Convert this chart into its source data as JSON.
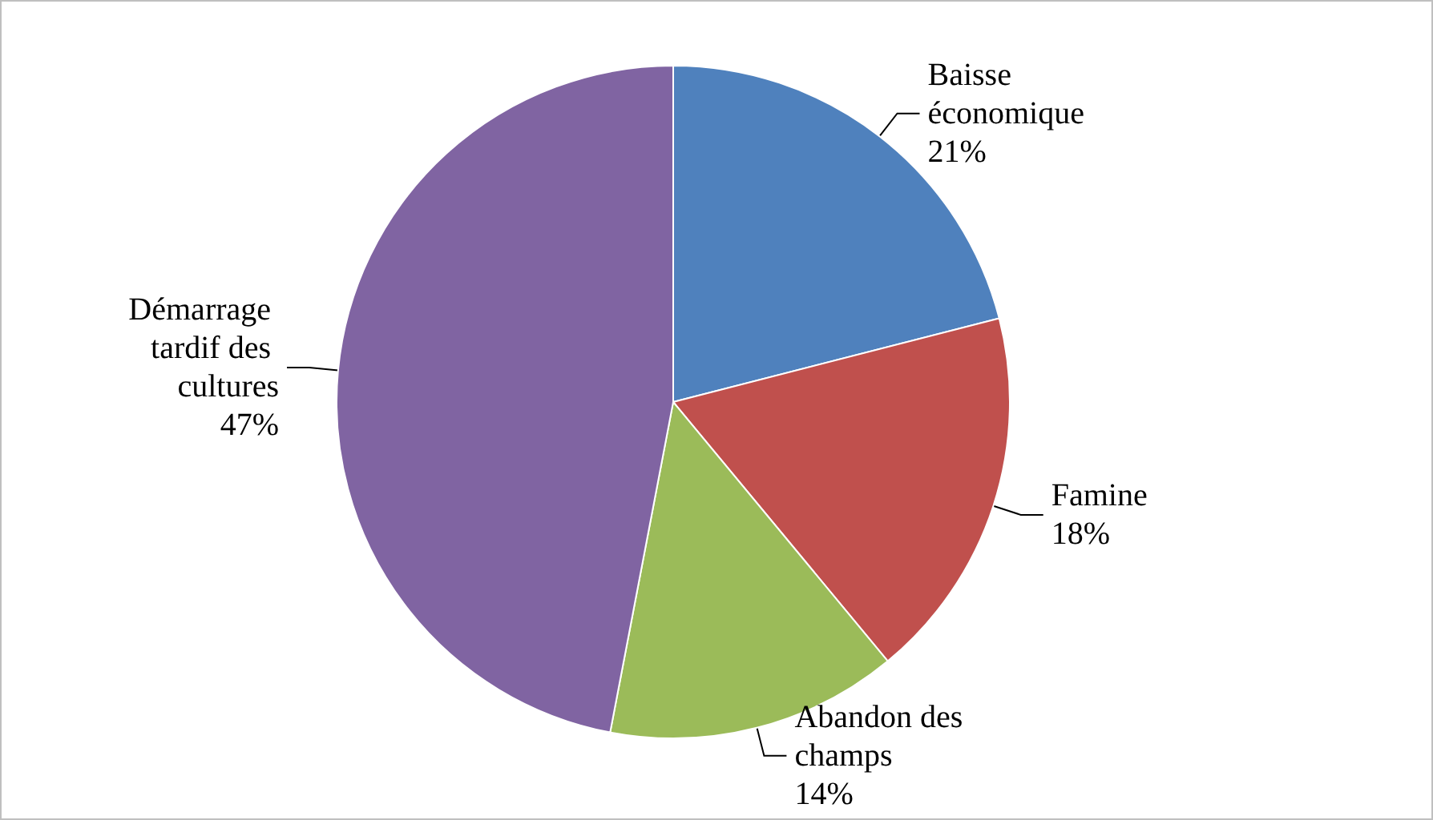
{
  "chart_data": {
    "type": "pie",
    "categories": [
      "Baisse économique",
      "Famine",
      "Abandon des champs",
      "Démarrage tardif des cultures"
    ],
    "values": [
      21,
      18,
      14,
      47
    ],
    "value_labels": [
      "21%",
      "18%",
      "14%",
      "47%"
    ],
    "colors": [
      "#4f81bd",
      "#c0504d",
      "#9bbb59",
      "#8064a2"
    ],
    "legend": false
  }
}
